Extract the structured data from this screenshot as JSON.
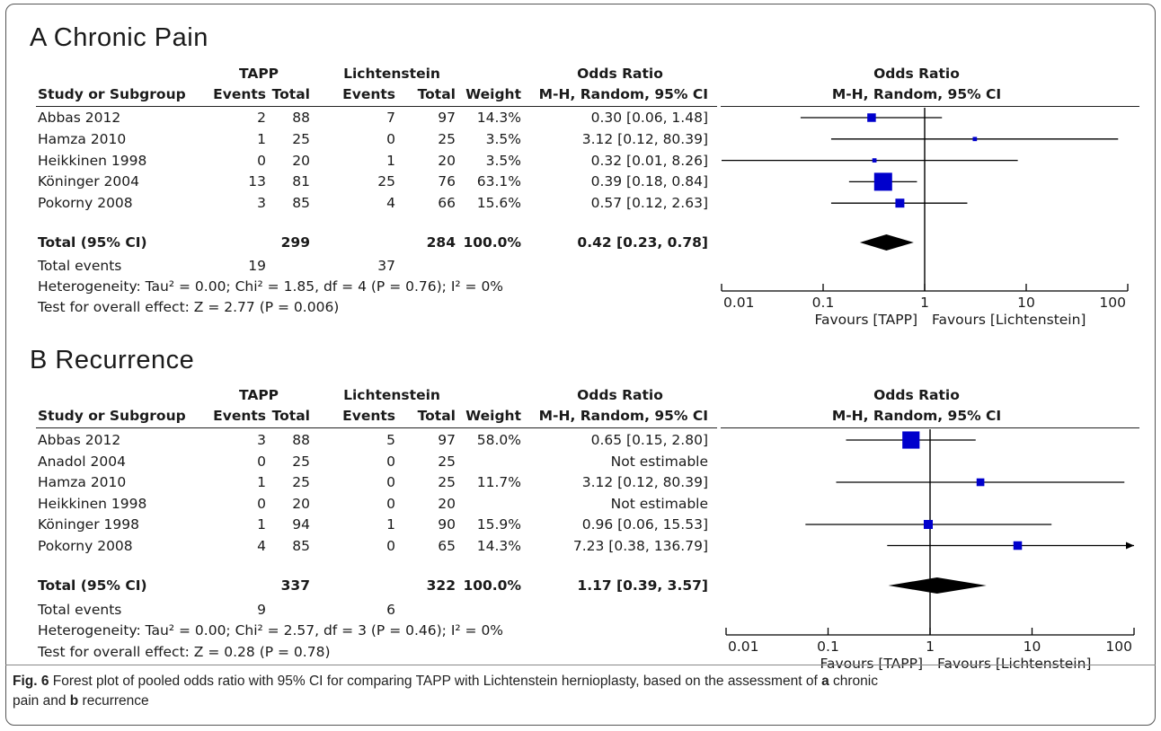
{
  "panels": [
    {
      "title": "A  Chronic Pain",
      "headers": {
        "group1": "TAPP",
        "group2": "Lichtenstein",
        "or_col": "Odds Ratio",
        "study": "Study or Subgroup",
        "events": "Events",
        "total": "Total",
        "weight": "Weight",
        "method": "M-H, Random, 95% CI",
        "plot_title": "Odds Ratio",
        "plot_method": "M-H, Random, 95% CI"
      },
      "rows": [
        {
          "study": "Abbas 2012",
          "e1": "2",
          "t1": "88",
          "e2": "7",
          "t2": "97",
          "weight": "14.3%",
          "ci": "0.30 [0.06, 1.48]"
        },
        {
          "study": "Hamza 2010",
          "e1": "1",
          "t1": "25",
          "e2": "0",
          "t2": "25",
          "weight": "3.5%",
          "ci": "3.12 [0.12, 80.39]"
        },
        {
          "study": "Heikkinen 1998",
          "e1": "0",
          "t1": "20",
          "e2": "1",
          "t2": "20",
          "weight": "3.5%",
          "ci": "0.32 [0.01, 8.26]"
        },
        {
          "study": "Köninger 2004",
          "e1": "13",
          "t1": "81",
          "e2": "25",
          "t2": "76",
          "weight": "63.1%",
          "ci": "0.39 [0.18, 0.84]"
        },
        {
          "study": "Pokorny 2008",
          "e1": "3",
          "t1": "85",
          "e2": "4",
          "t2": "66",
          "weight": "15.6%",
          "ci": "0.57 [0.12, 2.63]"
        }
      ],
      "total": {
        "label": "Total (95% CI)",
        "t1": "299",
        "t2": "284",
        "weight": "100.0%",
        "ci": "0.42 [0.23, 0.78]"
      },
      "events": {
        "label": "Total events",
        "e1": "19",
        "e2": "37"
      },
      "heterogeneity": "Heterogeneity: Tau² = 0.00; Chi² = 1.85, df = 4 (P = 0.76); I² = 0%",
      "overall": "Test for overall effect: Z = 2.77 (P = 0.006)",
      "axis": {
        "ticks": [
          "0.01",
          "0.1",
          "1",
          "10",
          "100"
        ],
        "favours_left": "Favours [TAPP]",
        "favours_right": "Favours [Lichtenstein]"
      }
    },
    {
      "title": "B  Recurrence",
      "headers": {
        "group1": "TAPP",
        "group2": "Lichtenstein",
        "or_col": "Odds Ratio",
        "study": "Study or Subgroup",
        "events": "Events",
        "total": "Total",
        "weight": "Weight",
        "method": "M-H, Random, 95% CI",
        "plot_title": "Odds Ratio",
        "plot_method": "M-H, Random, 95% CI"
      },
      "rows": [
        {
          "study": "Abbas 2012",
          "e1": "3",
          "t1": "88",
          "e2": "5",
          "t2": "97",
          "weight": "58.0%",
          "ci": "0.65 [0.15, 2.80]"
        },
        {
          "study": "Anadol 2004",
          "e1": "0",
          "t1": "25",
          "e2": "0",
          "t2": "25",
          "weight": "",
          "ci": "Not estimable"
        },
        {
          "study": "Hamza 2010",
          "e1": "1",
          "t1": "25",
          "e2": "0",
          "t2": "25",
          "weight": "11.7%",
          "ci": "3.12 [0.12, 80.39]"
        },
        {
          "study": "Heikkinen 1998",
          "e1": "0",
          "t1": "20",
          "e2": "0",
          "t2": "20",
          "weight": "",
          "ci": "Not estimable"
        },
        {
          "study": "Köninger 1998",
          "e1": "1",
          "t1": "94",
          "e2": "1",
          "t2": "90",
          "weight": "15.9%",
          "ci": "0.96 [0.06, 15.53]"
        },
        {
          "study": "Pokorny 2008",
          "e1": "4",
          "t1": "85",
          "e2": "0",
          "t2": "65",
          "weight": "14.3%",
          "ci": "7.23 [0.38, 136.79]"
        }
      ],
      "total": {
        "label": "Total (95% CI)",
        "t1": "337",
        "t2": "322",
        "weight": "100.0%",
        "ci": "1.17 [0.39, 3.57]"
      },
      "events": {
        "label": "Total events",
        "e1": "9",
        "e2": "6"
      },
      "heterogeneity": "Heterogeneity: Tau² = 0.00; Chi² = 2.57, df = 3 (P = 0.46); I² = 0%",
      "overall": "Test for overall effect: Z = 0.28 (P = 0.78)",
      "axis": {
        "ticks": [
          "0.01",
          "0.1",
          "1",
          "10",
          "100"
        ],
        "favours_left": "Favours [TAPP]",
        "favours_right": "Favours [Lichtenstein]"
      }
    }
  ],
  "caption": {
    "fig_label": "Fig. 6",
    "text_1": " Forest plot of pooled odds ratio with 95% CI for comparing TAPP with Lichtenstein hernioplasty, based on the assessment of ",
    "bold_a": "a",
    "text_2": " chronic",
    "text_3": "pain and ",
    "bold_b": "b",
    "text_4": " recurrence"
  },
  "colors": {
    "marker": "#0000cc",
    "diamond": "#000000",
    "line": "#000000"
  },
  "chart_data": [
    {
      "type": "forest",
      "title": "Chronic Pain",
      "x_scale": "log",
      "xlim": [
        0.01,
        100
      ],
      "x_ticks": [
        0.01,
        0.1,
        1,
        10,
        100
      ],
      "null_line": 1,
      "studies": [
        {
          "name": "Abbas 2012",
          "or": 0.3,
          "lo": 0.06,
          "hi": 1.48,
          "weight": 14.3
        },
        {
          "name": "Hamza 2010",
          "or": 3.12,
          "lo": 0.12,
          "hi": 80.39,
          "weight": 3.5
        },
        {
          "name": "Heikkinen 1998",
          "or": 0.32,
          "lo": 0.01,
          "hi": 8.26,
          "weight": 3.5
        },
        {
          "name": "Köninger 2004",
          "or": 0.39,
          "lo": 0.18,
          "hi": 0.84,
          "weight": 63.1
        },
        {
          "name": "Pokorny 2008",
          "or": 0.57,
          "lo": 0.12,
          "hi": 2.63,
          "weight": 15.6
        }
      ],
      "pooled": {
        "or": 0.42,
        "lo": 0.23,
        "hi": 0.78
      }
    },
    {
      "type": "forest",
      "title": "Recurrence",
      "x_scale": "log",
      "xlim": [
        0.01,
        100
      ],
      "x_ticks": [
        0.01,
        0.1,
        1,
        10,
        100
      ],
      "null_line": 1,
      "studies": [
        {
          "name": "Abbas 2012",
          "or": 0.65,
          "lo": 0.15,
          "hi": 2.8,
          "weight": 58.0
        },
        {
          "name": "Anadol 2004",
          "or": null,
          "lo": null,
          "hi": null,
          "weight": null
        },
        {
          "name": "Hamza 2010",
          "or": 3.12,
          "lo": 0.12,
          "hi": 80.39,
          "weight": 11.7
        },
        {
          "name": "Heikkinen 1998",
          "or": null,
          "lo": null,
          "hi": null,
          "weight": null
        },
        {
          "name": "Köninger 1998",
          "or": 0.96,
          "lo": 0.06,
          "hi": 15.53,
          "weight": 15.9
        },
        {
          "name": "Pokorny 2008",
          "or": 7.23,
          "lo": 0.38,
          "hi": 136.79,
          "weight": 14.3
        }
      ],
      "pooled": {
        "or": 1.17,
        "lo": 0.39,
        "hi": 3.57
      }
    }
  ]
}
